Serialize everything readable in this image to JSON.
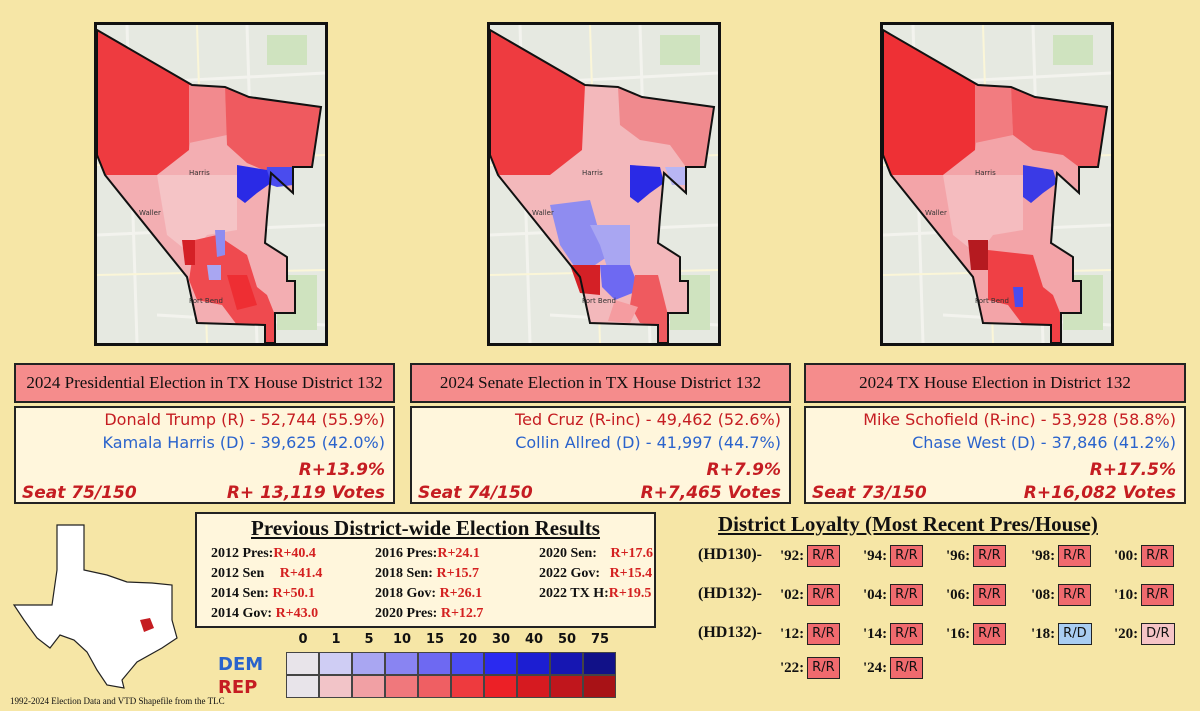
{
  "maps": [
    {
      "county_labels": [
        "Harris",
        "Waller",
        "Fort Bend"
      ]
    },
    {
      "county_labels": [
        "Harris",
        "Waller",
        "Fort Bend"
      ]
    },
    {
      "county_labels": [
        "Harris",
        "Waller",
        "Fort Bend"
      ]
    }
  ],
  "panels": [
    {
      "header": "2024 Presidential Election in TX House District 132",
      "rep_line": "Donald Trump (R) - 52,744 (55.9%)",
      "dem_line": "Kamala Harris (D) - 39,625 (42.0%)",
      "margin": "R+13.9%",
      "seat": "Seat 75/150",
      "votes": "R+ 13,119 Votes"
    },
    {
      "header": "2024 Senate Election in TX House District 132",
      "rep_line": "Ted Cruz (R-inc) - 49,462 (52.6%)",
      "dem_line": "Collin Allred (D) - 41,997 (44.7%)",
      "margin": "R+7.9%",
      "seat": "Seat 74/150",
      "votes": "R+7,465 Votes"
    },
    {
      "header": "2024 TX House Election in District 132",
      "rep_line": "Mike Schofield (R-inc) - 53,928 (58.8%)",
      "dem_line": "Chase West (D) - 37,846 (41.2%)",
      "margin": "R+17.5%",
      "seat": "Seat 73/150",
      "votes": "R+16,082 Votes"
    }
  ],
  "previous": {
    "title": "Previous District-wide Election Results",
    "items": [
      {
        "label": "2012 Pres:",
        "value": "R+40.4"
      },
      {
        "label": "2012 Sen",
        "value": "R+41.4"
      },
      {
        "label": "2014 Sen:",
        "value": "R+50.1"
      },
      {
        "label": "2014 Gov:",
        "value": "R+43.0"
      },
      {
        "label": "2016 Pres:",
        "value": "R+24.1"
      },
      {
        "label": "2018 Sen:",
        "value": "R+15.7"
      },
      {
        "label": "2018 Gov:",
        "value": "R+26.1"
      },
      {
        "label": "2020 Pres:",
        "value": "R+12.7"
      },
      {
        "label": "2020 Sen:",
        "value": "R+17.6"
      },
      {
        "label": "2022 Gov:",
        "value": "R+15.4"
      },
      {
        "label": "2022 TX H:",
        "value": "R+19.5"
      }
    ]
  },
  "loyalty": {
    "title": "District Loyalty (Most Recent Pres/House)",
    "rows": [
      {
        "label": "(HD130)-",
        "items": [
          {
            "year": "'92:",
            "v": "R/R"
          },
          {
            "year": "'94:",
            "v": "R/R"
          },
          {
            "year": "'96:",
            "v": "R/R"
          },
          {
            "year": "'98:",
            "v": "R/R"
          },
          {
            "year": "'00:",
            "v": "R/R"
          }
        ]
      },
      {
        "label": "(HD132)-",
        "items": [
          {
            "year": "'02:",
            "v": "R/R"
          },
          {
            "year": "'04:",
            "v": "R/R"
          },
          {
            "year": "'06:",
            "v": "R/R"
          },
          {
            "year": "'08:",
            "v": "R/R"
          },
          {
            "year": "'10:",
            "v": "R/R"
          }
        ]
      },
      {
        "label": "(HD132)-",
        "items": [
          {
            "year": "'12:",
            "v": "R/R"
          },
          {
            "year": "'14:",
            "v": "R/R"
          },
          {
            "year": "'16:",
            "v": "R/R"
          },
          {
            "year": "'18:",
            "v": "R/D"
          },
          {
            "year": "'20:",
            "v": "D/R"
          }
        ]
      },
      {
        "label": "",
        "items": [
          {
            "year": "'22:",
            "v": "R/R"
          },
          {
            "year": "'24:",
            "v": "R/R"
          }
        ]
      }
    ]
  },
  "legend": {
    "thresholds": [
      "0",
      "1",
      "5",
      "10",
      "15",
      "20",
      "30",
      "40",
      "50",
      "75"
    ],
    "dem_label": "DEM",
    "rep_label": "REP",
    "dem_colors": [
      "#e8e4ea",
      "#cfcdf4",
      "#a9a6f2",
      "#8984f2",
      "#6e69f2",
      "#4b4cf4",
      "#2a2af0",
      "#1c1ed2",
      "#1616b2",
      "#111188"
    ],
    "rep_colors": [
      "#e8e4ea",
      "#f2c4c8",
      "#f1a0a4",
      "#f0787c",
      "#ef5f63",
      "#ee3a3e",
      "#ec2026",
      "#d61a20",
      "#c0161c",
      "#a81216"
    ]
  },
  "footnote": "1992-2024 Election Data and VTD Shapefile from the TLC",
  "colors": {
    "rep": "#c51d22",
    "dem": "#2a63cc",
    "header_bg": "#f58c8c",
    "page_bg": "#f6e6a6"
  }
}
